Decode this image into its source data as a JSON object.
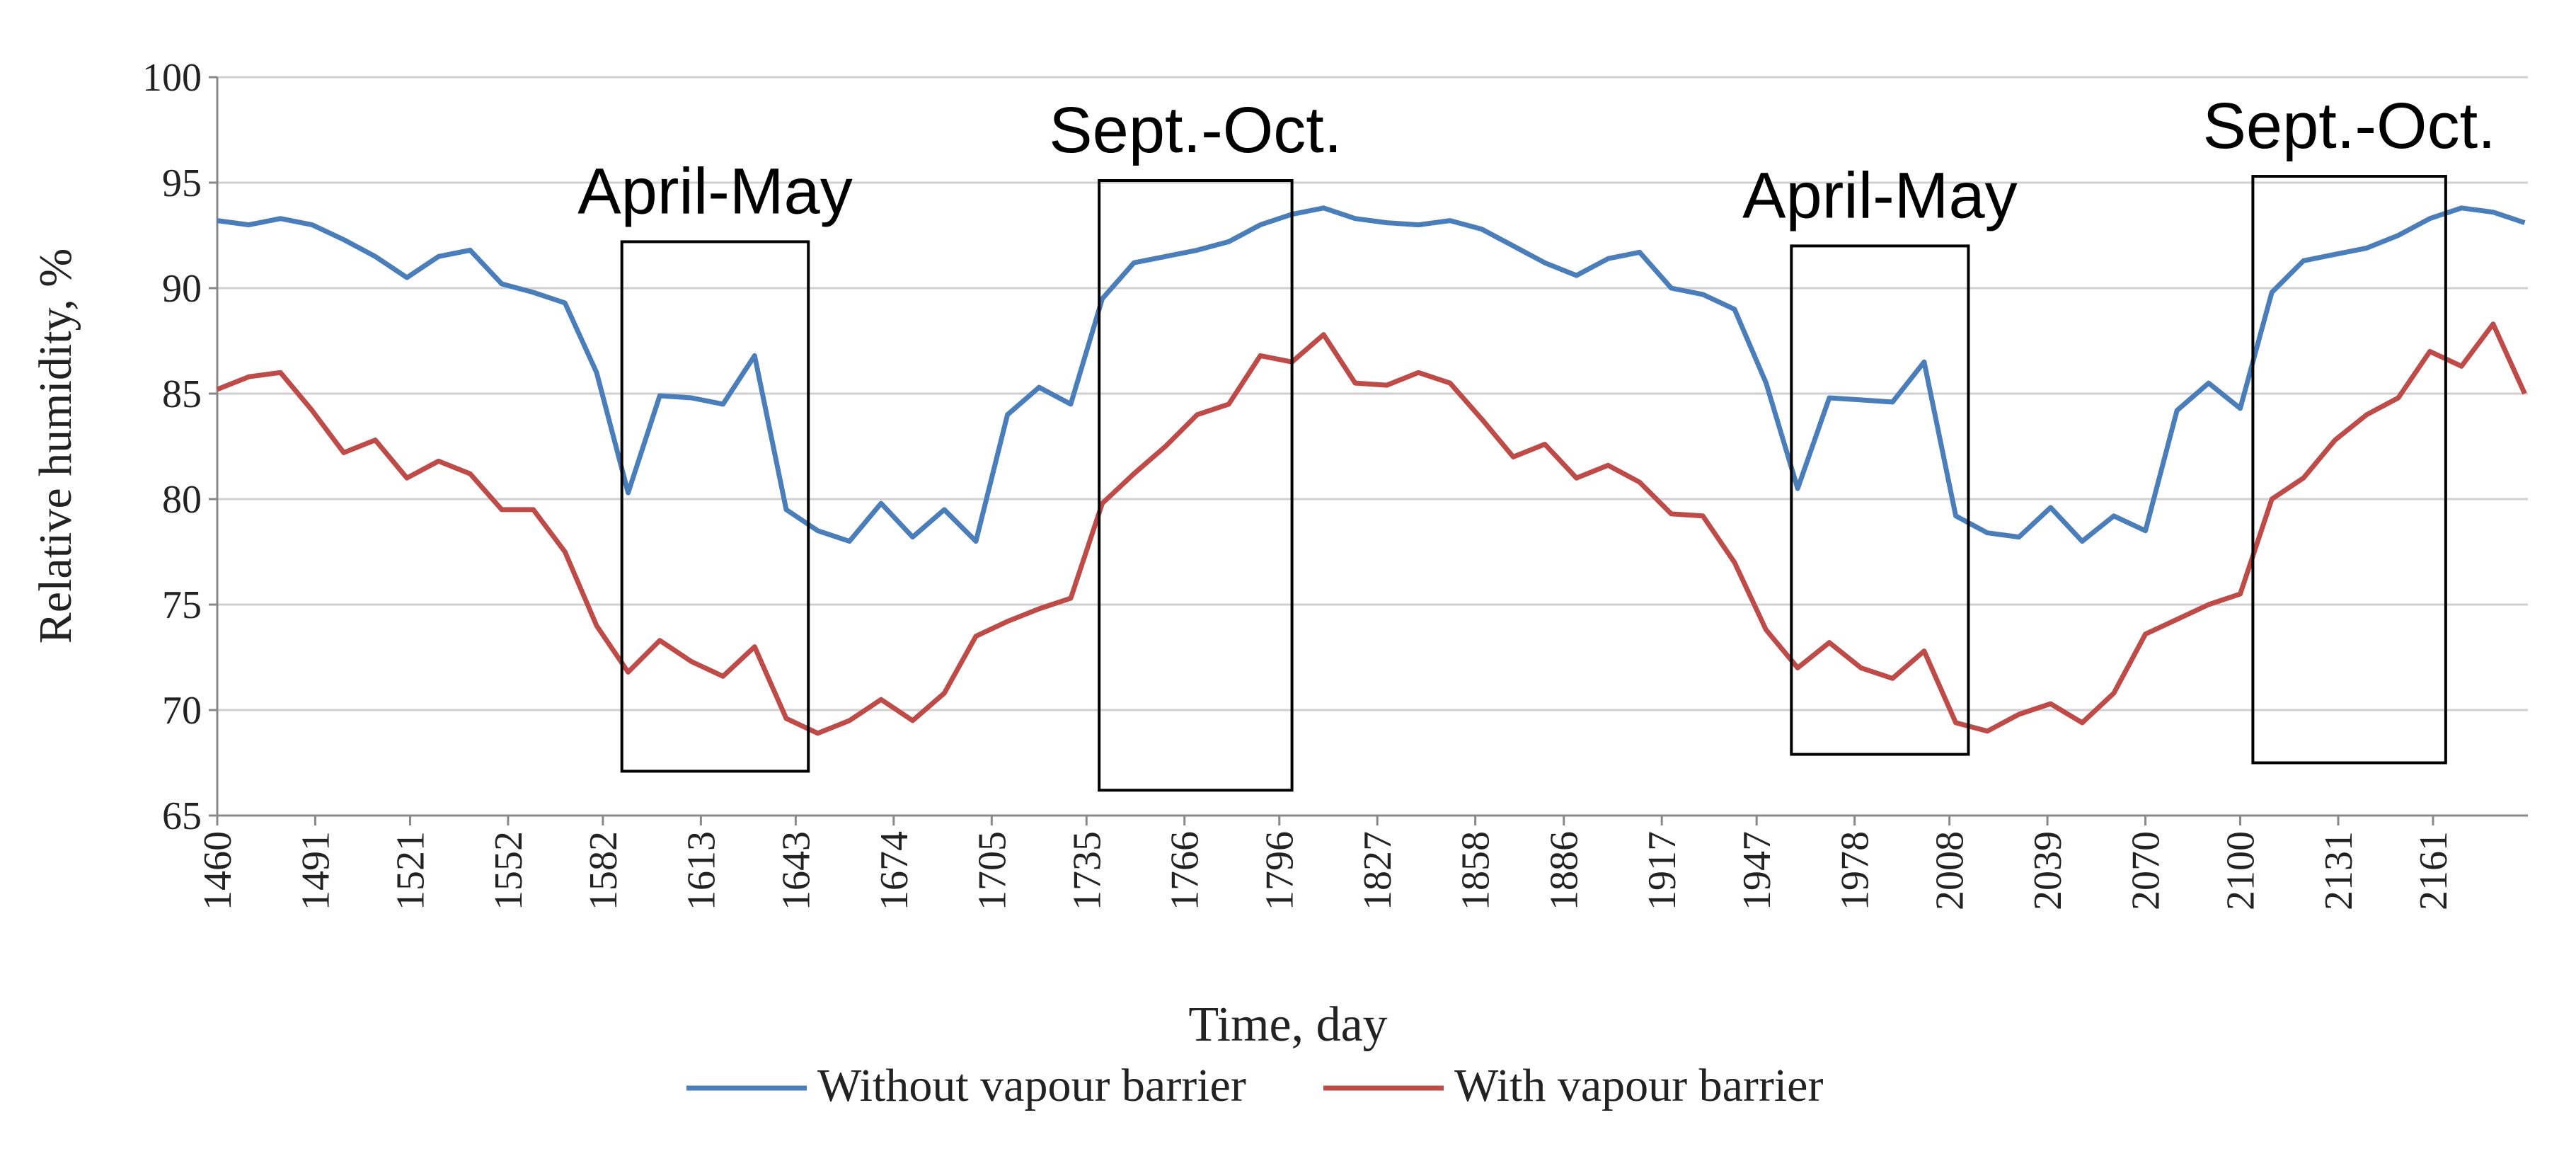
{
  "chart_data": {
    "type": "line",
    "x_label": "Time, day",
    "y_label": "Relative humidity, %",
    "x": [
      1460,
      1470,
      1480,
      1490,
      1500,
      1510,
      1520,
      1530,
      1540,
      1550,
      1560,
      1570,
      1580,
      1590,
      1600,
      1610,
      1620,
      1630,
      1640,
      1650,
      1660,
      1670,
      1680,
      1690,
      1700,
      1710,
      1720,
      1730,
      1740,
      1750,
      1760,
      1770,
      1780,
      1790,
      1800,
      1810,
      1820,
      1830,
      1840,
      1850,
      1860,
      1870,
      1880,
      1890,
      1900,
      1910,
      1920,
      1930,
      1940,
      1950,
      1960,
      1970,
      1980,
      1990,
      2000,
      2010,
      2020,
      2030,
      2040,
      2050,
      2060,
      2070,
      2080,
      2090,
      2100,
      2110,
      2120,
      2130,
      2140,
      2150,
      2160,
      2170,
      2180,
      2190
    ],
    "series": [
      {
        "name": "Without vapour barrier",
        "color": "#4a7ebb",
        "values": [
          93.2,
          93.0,
          93.3,
          93.0,
          92.3,
          91.5,
          90.5,
          91.5,
          91.8,
          90.2,
          89.8,
          89.3,
          86.0,
          80.3,
          84.9,
          84.8,
          84.5,
          86.8,
          79.5,
          78.5,
          78.0,
          79.8,
          78.2,
          79.5,
          78.0,
          84.0,
          85.3,
          84.5,
          89.5,
          91.2,
          91.5,
          91.8,
          92.2,
          93.0,
          93.5,
          93.8,
          93.3,
          93.1,
          93.0,
          93.2,
          92.8,
          92.0,
          91.2,
          90.6,
          91.4,
          91.7,
          90.0,
          89.7,
          89.0,
          85.5,
          80.5,
          84.8,
          84.7,
          84.6,
          86.5,
          79.2,
          78.4,
          78.2,
          79.6,
          78.0,
          79.2,
          78.5,
          84.2,
          85.5,
          84.3,
          89.8,
          91.3,
          91.6,
          91.9,
          92.5,
          93.3,
          93.8,
          93.6,
          93.1
        ]
      },
      {
        "name": "With vapour barrier",
        "color": "#be4b48",
        "values": [
          85.2,
          85.8,
          86.0,
          84.2,
          82.2,
          82.8,
          81.0,
          81.8,
          81.2,
          79.5,
          79.5,
          77.5,
          74.0,
          71.8,
          73.3,
          72.3,
          71.6,
          73.0,
          69.6,
          68.9,
          69.5,
          70.5,
          69.5,
          70.8,
          73.5,
          74.2,
          74.8,
          75.3,
          79.8,
          81.2,
          82.5,
          84.0,
          84.5,
          86.8,
          86.5,
          87.8,
          85.5,
          85.4,
          86.0,
          85.5,
          83.8,
          82.0,
          82.6,
          81.0,
          81.6,
          80.8,
          79.3,
          79.2,
          77.0,
          73.8,
          72.0,
          73.2,
          72.0,
          71.5,
          72.8,
          69.4,
          69.0,
          69.8,
          70.3,
          69.4,
          70.8,
          73.6,
          74.3,
          75.0,
          75.5,
          80.0,
          81.0,
          82.8,
          84.0,
          84.8,
          87.0,
          86.3,
          88.3,
          85.0
        ]
      }
    ],
    "xlim": [
      1460,
      2191
    ],
    "xticks": [
      1460,
      1491,
      1521,
      1552,
      1582,
      1613,
      1643,
      1674,
      1705,
      1735,
      1766,
      1796,
      1827,
      1858,
      1886,
      1917,
      1947,
      1978,
      2008,
      2039,
      2070,
      2100,
      2131,
      2161
    ],
    "ylim": [
      65,
      100
    ],
    "yticks": [
      65,
      70,
      75,
      80,
      85,
      90,
      95,
      100
    ],
    "grid": true,
    "legend": "bottom",
    "annotations": [
      {
        "text": "April-May",
        "x": [
          1588,
          1647
        ],
        "y": [
          67.1,
          92.2
        ]
      },
      {
        "text": "Sept.-Oct.",
        "x": [
          1739,
          1800
        ],
        "y": [
          66.2,
          95.1
        ]
      },
      {
        "text": "April-May",
        "x": [
          1958,
          2014
        ],
        "y": [
          67.9,
          92.0
        ]
      },
      {
        "text": "Sept.-Oct.",
        "x": [
          2104,
          2165
        ],
        "y": [
          67.5,
          95.3
        ]
      }
    ]
  }
}
